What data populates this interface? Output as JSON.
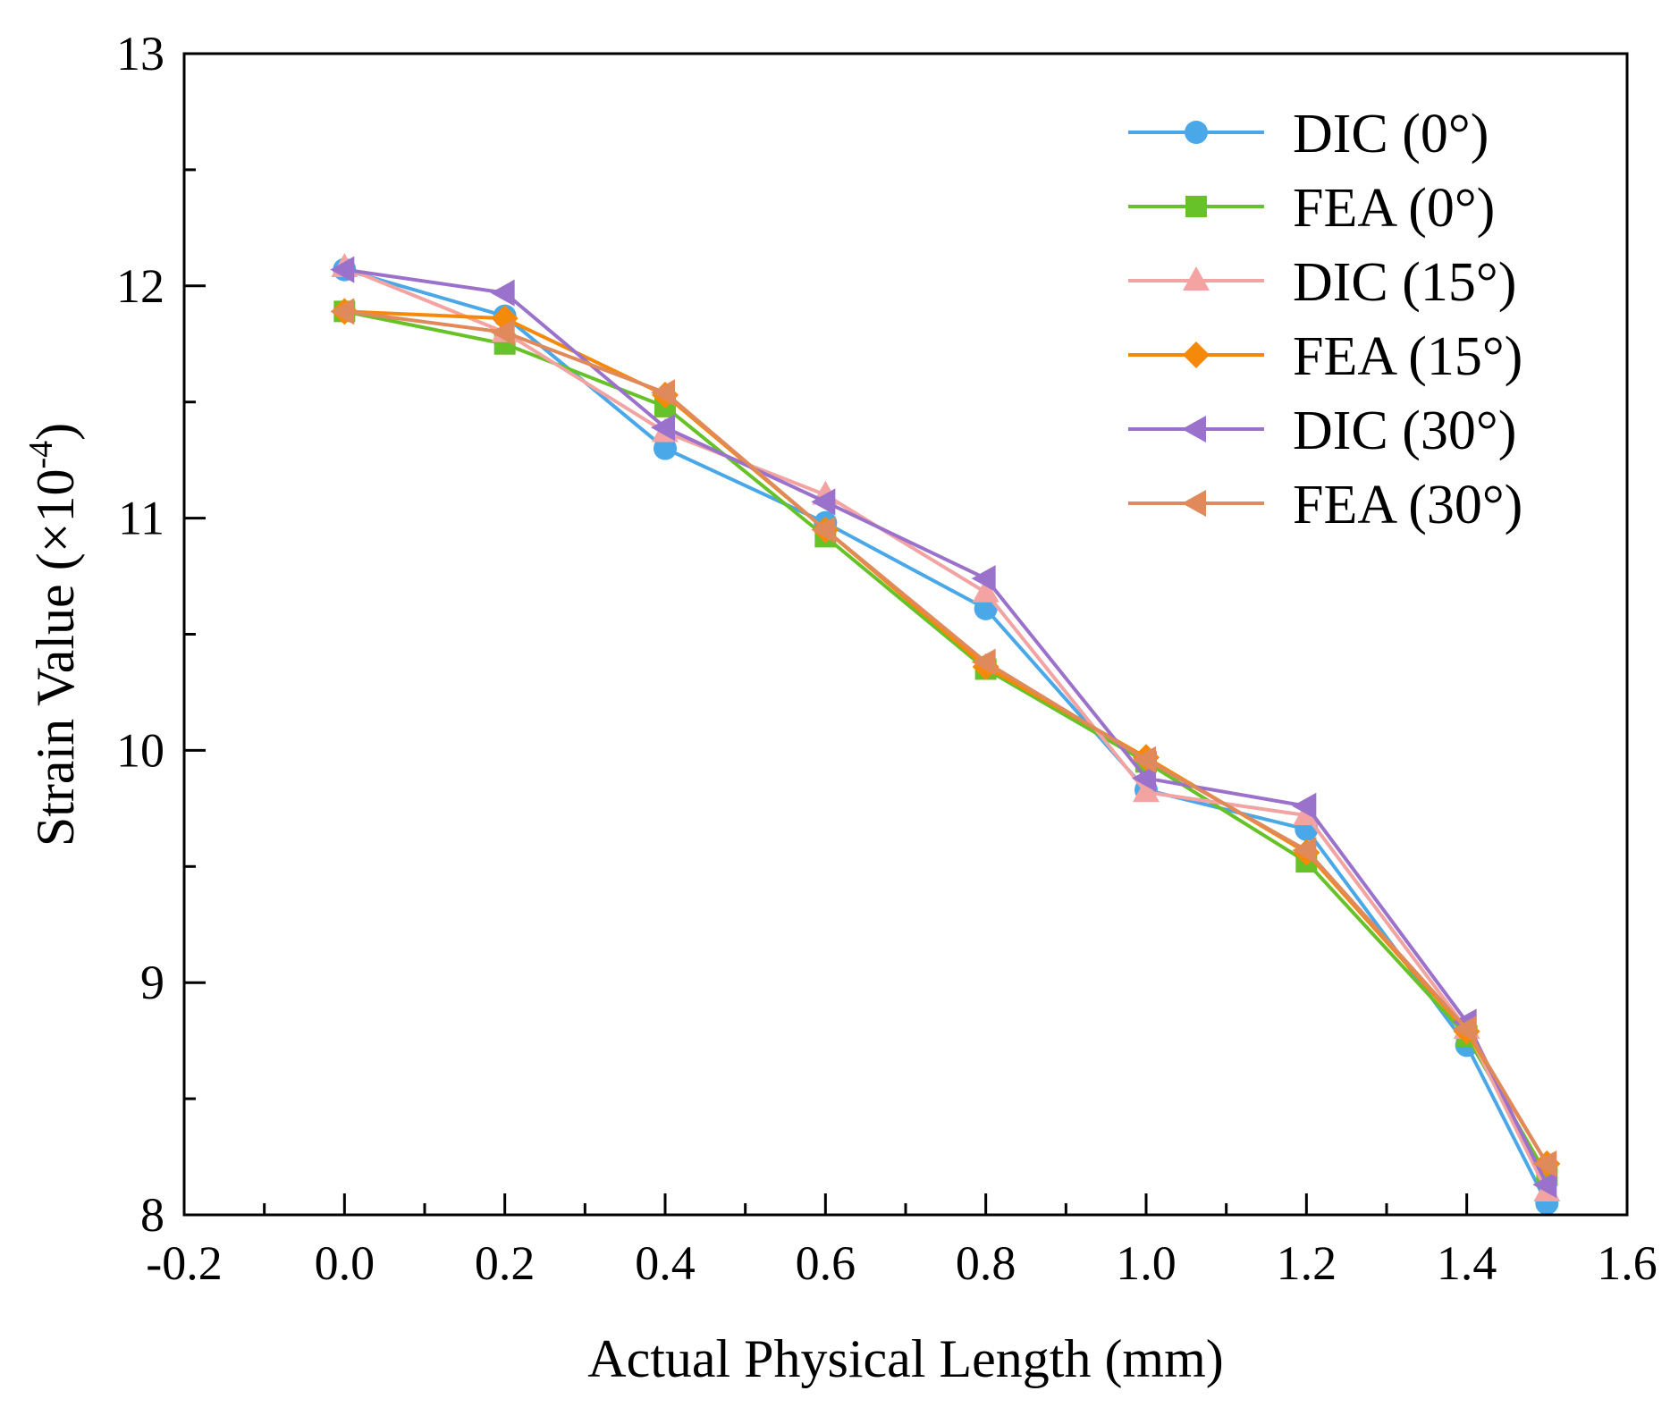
{
  "chart_data": {
    "type": "line",
    "title": "",
    "xlabel": "Actual Physical Length (mm)",
    "ylabel_main": "Strain Value (×10",
    "ylabel_exp": "-4",
    "ylabel_close": ")",
    "xlim": [
      -0.2,
      1.6
    ],
    "ylim": [
      8,
      13
    ],
    "xticks": [
      "-0.2",
      "0.0",
      "0.2",
      "0.4",
      "0.6",
      "0.8",
      "1.0",
      "1.2",
      "1.4",
      "1.6"
    ],
    "xtick_values": [
      -0.2,
      0.0,
      0.2,
      0.4,
      0.6,
      0.8,
      1.0,
      1.2,
      1.4,
      1.6
    ],
    "yticks": [
      "8",
      "9",
      "10",
      "11",
      "12",
      "13"
    ],
    "ytick_values": [
      8,
      9,
      10,
      11,
      12,
      13
    ],
    "grid": false,
    "legend_position": "top-right",
    "x": [
      0.0,
      0.2,
      0.4,
      0.6,
      0.8,
      1.0,
      1.2,
      1.4,
      1.5
    ],
    "series": [
      {
        "name": "DIC (0°)",
        "color": "#4aa8e8",
        "marker": "circle",
        "values": [
          12.07,
          11.87,
          11.3,
          10.98,
          10.61,
          9.83,
          9.66,
          8.73,
          8.05
        ]
      },
      {
        "name": "FEA (0°)",
        "color": "#66c228",
        "marker": "square",
        "values": [
          11.89,
          11.75,
          11.48,
          10.92,
          10.35,
          9.95,
          9.52,
          8.77,
          8.17
        ]
      },
      {
        "name": "DIC (15°)",
        "color": "#f4a3a3",
        "marker": "triangle-up",
        "values": [
          12.08,
          11.8,
          11.37,
          11.1,
          10.68,
          9.82,
          9.72,
          8.8,
          8.1
        ]
      },
      {
        "name": "FEA (15°)",
        "color": "#f5890a",
        "marker": "diamond",
        "values": [
          11.89,
          11.86,
          11.53,
          10.95,
          10.36,
          9.97,
          9.56,
          8.79,
          8.22
        ]
      },
      {
        "name": "DIC (30°)",
        "color": "#9b72cb",
        "marker": "triangle-left",
        "values": [
          12.07,
          11.97,
          11.39,
          11.07,
          10.74,
          9.88,
          9.76,
          8.83,
          8.13
        ]
      },
      {
        "name": "FEA (30°)",
        "color": "#e08a5c",
        "marker": "triangle-left",
        "values": [
          11.89,
          11.8,
          11.54,
          10.95,
          10.38,
          9.96,
          9.57,
          8.8,
          8.22
        ]
      }
    ]
  }
}
